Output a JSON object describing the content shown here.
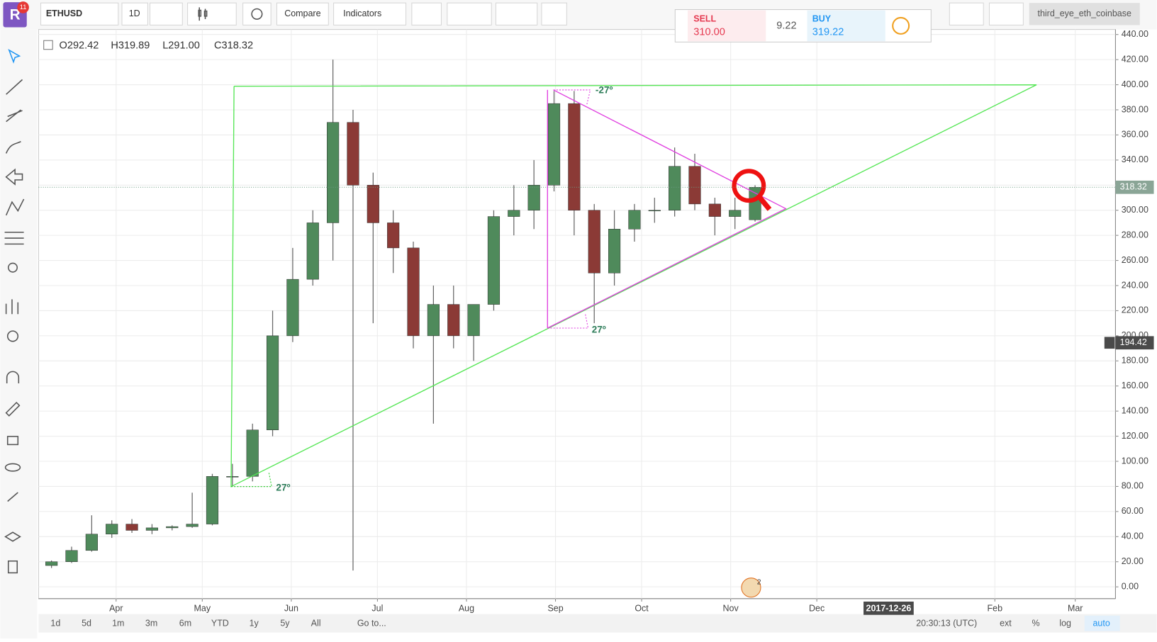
{
  "toolbar": {
    "badge": "11",
    "symbol": "ETHUSD",
    "interval": "1D",
    "compare": "Compare",
    "indicators": "Indicators",
    "account": "third_eye_eth_coinbase"
  },
  "trade_panel": {
    "sell_label": "SELL",
    "sell_price": "310.00",
    "spread": "9.22",
    "buy_label": "BUY",
    "buy_price": "319.22"
  },
  "legend": [
    "O292.42",
    "H319.89",
    "L291.00",
    "C318.32"
  ],
  "chart_data": {
    "type": "candlestick",
    "x": [
      "2017-03-06",
      "2017-03-13",
      "2017-03-20",
      "2017-03-27",
      "2017-04-03",
      "2017-04-10",
      "2017-04-17",
      "2017-04-24",
      "2017-05-01",
      "2017-05-08",
      "2017-05-15",
      "2017-05-22",
      "2017-05-29",
      "2017-06-05",
      "2017-06-12",
      "2017-06-19",
      "2017-06-26",
      "2017-07-03",
      "2017-07-10",
      "2017-07-17",
      "2017-07-24",
      "2017-07-31",
      "2017-08-07",
      "2017-08-14",
      "2017-08-21",
      "2017-08-28",
      "2017-09-04",
      "2017-09-11",
      "2017-09-18",
      "2017-09-25",
      "2017-10-02",
      "2017-10-09",
      "2017-10-16",
      "2017-10-23",
      "2017-10-30",
      "2017-11-06"
    ],
    "open": [
      17,
      20,
      29,
      42,
      50,
      45,
      47,
      48,
      50,
      88,
      88,
      125,
      200,
      245,
      290,
      370,
      320,
      290,
      270,
      200,
      225,
      200,
      225,
      295,
      300,
      320,
      385,
      300,
      250,
      285,
      300,
      300,
      335,
      305,
      295,
      292.42
    ],
    "high": [
      21,
      32,
      57,
      53,
      54,
      50,
      49,
      75,
      90,
      98,
      130,
      220,
      270,
      300,
      420,
      380,
      330,
      300,
      275,
      240,
      240,
      225,
      300,
      320,
      340,
      395,
      395,
      305,
      300,
      305,
      310,
      350,
      345,
      310,
      310,
      319.89
    ],
    "low": [
      15,
      19,
      28,
      39,
      43,
      42,
      45,
      47,
      49,
      80,
      84,
      120,
      195,
      240,
      260,
      13,
      210,
      250,
      190,
      130,
      190,
      180,
      220,
      280,
      285,
      315,
      280,
      210,
      240,
      275,
      290,
      295,
      300,
      280,
      285,
      291
    ],
    "close": [
      20,
      29,
      42,
      50,
      45,
      47,
      48,
      50,
      88,
      88,
      125,
      200,
      245,
      290,
      370,
      320,
      290,
      270,
      200,
      225,
      200,
      225,
      295,
      300,
      320,
      385,
      300,
      250,
      285,
      300,
      300,
      335,
      305,
      295,
      300,
      318.32
    ],
    "up_color": "#4f8a5b",
    "down_color": "#8b3a36",
    "xlim": [
      "2017-03-05",
      "2018-03-15"
    ],
    "xticks": [
      {
        "value": "2017-04-01",
        "label": "Apr"
      },
      {
        "value": "2017-05-01",
        "label": "May"
      },
      {
        "value": "2017-06-01",
        "label": "Jun"
      },
      {
        "value": "2017-07-01",
        "label": "Jul"
      },
      {
        "value": "2017-08-01",
        "label": "Aug"
      },
      {
        "value": "2017-09-01",
        "label": "Sep"
      },
      {
        "value": "2017-10-01",
        "label": "Oct"
      },
      {
        "value": "2017-11-01",
        "label": "Nov"
      },
      {
        "value": "2017-12-01",
        "label": "Dec"
      },
      {
        "value": "2018-02-01",
        "label": "Feb"
      },
      {
        "value": "2018-03-01",
        "label": "Mar"
      }
    ],
    "ylim": [
      -9.4,
      444
    ],
    "yticks": [
      {
        "value": 0,
        "label": "0.00"
      },
      {
        "value": 20,
        "label": "20.00"
      },
      {
        "value": 40,
        "label": "40.00"
      },
      {
        "value": 60,
        "label": "60.00"
      },
      {
        "value": 80,
        "label": "80.00"
      },
      {
        "value": 100,
        "label": "100.00"
      },
      {
        "value": 120,
        "label": "120.00"
      },
      {
        "value": 140,
        "label": "140.00"
      },
      {
        "value": 160,
        "label": "160.00"
      },
      {
        "value": 180,
        "label": "180.00"
      },
      {
        "value": 200,
        "label": "200.00"
      },
      {
        "value": 220,
        "label": "220.00"
      },
      {
        "value": 240,
        "label": "240.00"
      },
      {
        "value": 260,
        "label": "260.00"
      },
      {
        "value": 280,
        "label": "280.00"
      },
      {
        "value": 300,
        "label": "300.00"
      },
      {
        "value": 320,
        "label": "320.00"
      },
      {
        "value": 340,
        "label": "340.00"
      },
      {
        "value": 360,
        "label": "360.00"
      },
      {
        "value": 380,
        "label": "380.00"
      },
      {
        "value": 400,
        "label": "400.00"
      },
      {
        "value": 420,
        "label": "420.00"
      },
      {
        "value": 440,
        "label": "440.00"
      }
    ],
    "grid": true,
    "last_price": 318.32,
    "crosshair_price": 194.42,
    "crosshair_date": "2017-12-26",
    "annotations": [
      "-27º",
      "27º",
      "27º"
    ],
    "events_badge": "2"
  },
  "bottom_bar": {
    "ranges": [
      "1d",
      "5d",
      "1m",
      "3m",
      "6m",
      "YTD",
      "1y",
      "5y",
      "All"
    ],
    "goto": "Go to...",
    "clock": "20:30:13 (UTC)",
    "toggles": [
      "ext",
      "%",
      "log",
      "auto"
    ]
  }
}
